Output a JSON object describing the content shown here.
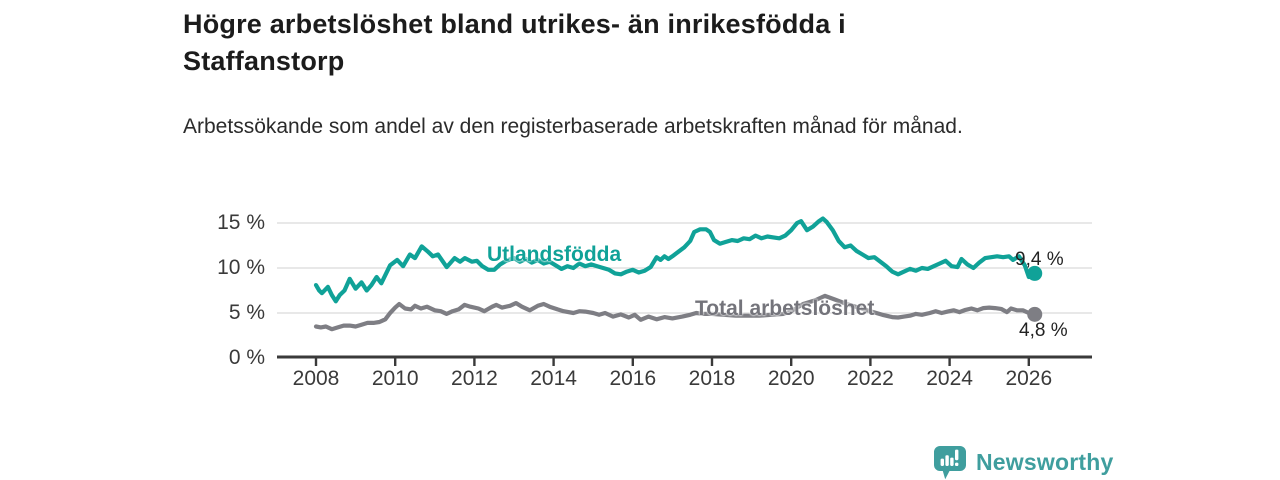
{
  "header": {
    "title": "Högre arbetslöshet bland utrikes- än inrikesfödda i Staffanstorp",
    "subtitle": "Arbetssökande som andel av den registerbaserade arbetskraften månad för månad."
  },
  "chart_data": {
    "type": "line",
    "title": "Högre arbetslöshet bland utrikes- än inrikesfödda i Staffanstorp",
    "subtitle": "Arbetssökande som andel av den registerbaserade arbetskraften månad för månad.",
    "unit": "%",
    "grid": "horizontal-only",
    "legend_position": "inline-on-lines",
    "x_axis": {
      "ticks": [
        2008,
        2010,
        2012,
        2014,
        2016,
        2018,
        2020,
        2022,
        2024,
        2026
      ],
      "tick_labels": [
        "2008",
        "2010",
        "2012",
        "2014",
        "2016",
        "2018",
        "2020",
        "2022",
        "2024",
        "2026"
      ],
      "range_years": [
        2007.0,
        2027.6
      ]
    },
    "y_axis": {
      "tick_values": [
        0,
        5,
        10,
        15
      ],
      "tick_labels": [
        "0 %",
        "5 %",
        "10 %",
        "15 %"
      ],
      "ylim": [
        0,
        16.5
      ]
    },
    "colors": {
      "accent_teal": "#10a298",
      "neutral_gray": "#7e7e84",
      "axis": "#3a3a3a",
      "gridline": "#d9d9d9",
      "background": "#ffffff"
    },
    "series": [
      {
        "name": "Utlandsfödda",
        "color": "#10a298",
        "end_label": "9,4 %",
        "end_value": 9.4,
        "points": [
          [
            2008.0,
            8.1
          ],
          [
            2008.08,
            7.5
          ],
          [
            2008.15,
            7.2
          ],
          [
            2008.3,
            7.9
          ],
          [
            2008.4,
            7.0
          ],
          [
            2008.5,
            6.3
          ],
          [
            2008.6,
            7.0
          ],
          [
            2008.72,
            7.5
          ],
          [
            2008.85,
            8.8
          ],
          [
            2009.0,
            7.7
          ],
          [
            2009.15,
            8.4
          ],
          [
            2009.28,
            7.5
          ],
          [
            2009.4,
            8.1
          ],
          [
            2009.53,
            9.0
          ],
          [
            2009.65,
            8.3
          ],
          [
            2009.87,
            10.3
          ],
          [
            2010.05,
            10.9
          ],
          [
            2010.2,
            10.2
          ],
          [
            2010.37,
            11.5
          ],
          [
            2010.5,
            11.1
          ],
          [
            2010.67,
            12.4
          ],
          [
            2010.83,
            11.8
          ],
          [
            2010.95,
            11.3
          ],
          [
            2011.08,
            11.5
          ],
          [
            2011.3,
            10.1
          ],
          [
            2011.5,
            11.1
          ],
          [
            2011.64,
            10.7
          ],
          [
            2011.76,
            11.1
          ],
          [
            2011.94,
            10.7
          ],
          [
            2012.06,
            10.8
          ],
          [
            2012.2,
            10.2
          ],
          [
            2012.35,
            9.8
          ],
          [
            2012.5,
            9.8
          ],
          [
            2012.65,
            10.4
          ],
          [
            2012.8,
            10.8
          ],
          [
            2013.0,
            11.1
          ],
          [
            2013.15,
            10.7
          ],
          [
            2013.3,
            11.0
          ],
          [
            2013.45,
            10.6
          ],
          [
            2013.6,
            10.9
          ],
          [
            2013.75,
            10.5
          ],
          [
            2013.9,
            10.7
          ],
          [
            2014.05,
            10.3
          ],
          [
            2014.2,
            9.9
          ],
          [
            2014.35,
            10.2
          ],
          [
            2014.5,
            10.0
          ],
          [
            2014.65,
            10.5
          ],
          [
            2014.8,
            10.2
          ],
          [
            2014.95,
            10.4
          ],
          [
            2015.1,
            10.2
          ],
          [
            2015.25,
            10.0
          ],
          [
            2015.4,
            9.8
          ],
          [
            2015.55,
            9.4
          ],
          [
            2015.7,
            9.3
          ],
          [
            2015.85,
            9.6
          ],
          [
            2016.0,
            9.8
          ],
          [
            2016.15,
            9.5
          ],
          [
            2016.3,
            9.7
          ],
          [
            2016.45,
            10.1
          ],
          [
            2016.6,
            11.2
          ],
          [
            2016.7,
            10.9
          ],
          [
            2016.8,
            11.3
          ],
          [
            2016.9,
            11.0
          ],
          [
            2017.0,
            11.3
          ],
          [
            2017.15,
            11.8
          ],
          [
            2017.3,
            12.3
          ],
          [
            2017.45,
            13.0
          ],
          [
            2017.55,
            14.0
          ],
          [
            2017.7,
            14.3
          ],
          [
            2017.85,
            14.3
          ],
          [
            2017.95,
            14.0
          ],
          [
            2018.05,
            13.1
          ],
          [
            2018.2,
            12.7
          ],
          [
            2018.35,
            12.9
          ],
          [
            2018.5,
            13.1
          ],
          [
            2018.65,
            13.0
          ],
          [
            2018.8,
            13.3
          ],
          [
            2018.95,
            13.2
          ],
          [
            2019.1,
            13.6
          ],
          [
            2019.25,
            13.3
          ],
          [
            2019.4,
            13.5
          ],
          [
            2019.55,
            13.4
          ],
          [
            2019.7,
            13.3
          ],
          [
            2019.85,
            13.6
          ],
          [
            2020.0,
            14.2
          ],
          [
            2020.15,
            15.0
          ],
          [
            2020.25,
            15.2
          ],
          [
            2020.4,
            14.2
          ],
          [
            2020.55,
            14.6
          ],
          [
            2020.7,
            15.2
          ],
          [
            2020.8,
            15.5
          ],
          [
            2020.9,
            15.1
          ],
          [
            2021.05,
            14.2
          ],
          [
            2021.2,
            13.0
          ],
          [
            2021.35,
            12.3
          ],
          [
            2021.5,
            12.5
          ],
          [
            2021.65,
            11.9
          ],
          [
            2021.8,
            11.5
          ],
          [
            2021.95,
            11.1
          ],
          [
            2022.1,
            11.2
          ],
          [
            2022.25,
            10.7
          ],
          [
            2022.4,
            10.2
          ],
          [
            2022.55,
            9.6
          ],
          [
            2022.7,
            9.3
          ],
          [
            2022.85,
            9.6
          ],
          [
            2023.0,
            9.9
          ],
          [
            2023.15,
            9.7
          ],
          [
            2023.3,
            10.0
          ],
          [
            2023.45,
            9.9
          ],
          [
            2023.6,
            10.2
          ],
          [
            2023.75,
            10.5
          ],
          [
            2023.9,
            10.8
          ],
          [
            2024.05,
            10.2
          ],
          [
            2024.2,
            10.1
          ],
          [
            2024.3,
            11.0
          ],
          [
            2024.45,
            10.4
          ],
          [
            2024.6,
            10.0
          ],
          [
            2024.75,
            10.6
          ],
          [
            2024.9,
            11.1
          ],
          [
            2025.05,
            11.2
          ],
          [
            2025.2,
            11.3
          ],
          [
            2025.35,
            11.2
          ],
          [
            2025.5,
            11.3
          ],
          [
            2025.6,
            10.9
          ],
          [
            2025.75,
            11.3
          ],
          [
            2025.9,
            10.3
          ],
          [
            2026.0,
            9.0
          ],
          [
            2026.1,
            9.2
          ],
          [
            2026.15,
            9.4
          ]
        ]
      },
      {
        "name": "Total arbetslöshet",
        "color": "#7e7e84",
        "end_label": "4,8 %",
        "end_value": 4.8,
        "points": [
          [
            2008.0,
            3.5
          ],
          [
            2008.12,
            3.4
          ],
          [
            2008.25,
            3.5
          ],
          [
            2008.4,
            3.2
          ],
          [
            2008.55,
            3.4
          ],
          [
            2008.7,
            3.6
          ],
          [
            2008.85,
            3.6
          ],
          [
            2009.0,
            3.5
          ],
          [
            2009.15,
            3.7
          ],
          [
            2009.3,
            3.9
          ],
          [
            2009.45,
            3.9
          ],
          [
            2009.6,
            4.0
          ],
          [
            2009.75,
            4.3
          ],
          [
            2009.87,
            5.0
          ],
          [
            2010.0,
            5.6
          ],
          [
            2010.1,
            6.0
          ],
          [
            2010.25,
            5.5
          ],
          [
            2010.4,
            5.4
          ],
          [
            2010.5,
            5.8
          ],
          [
            2010.65,
            5.5
          ],
          [
            2010.8,
            5.7
          ],
          [
            2011.0,
            5.3
          ],
          [
            2011.15,
            5.2
          ],
          [
            2011.3,
            4.9
          ],
          [
            2011.45,
            5.2
          ],
          [
            2011.6,
            5.4
          ],
          [
            2011.75,
            5.9
          ],
          [
            2011.9,
            5.7
          ],
          [
            2012.1,
            5.5
          ],
          [
            2012.25,
            5.2
          ],
          [
            2012.45,
            5.7
          ],
          [
            2012.55,
            5.9
          ],
          [
            2012.7,
            5.6
          ],
          [
            2012.9,
            5.8
          ],
          [
            2013.05,
            6.1
          ],
          [
            2013.2,
            5.7
          ],
          [
            2013.4,
            5.3
          ],
          [
            2013.6,
            5.8
          ],
          [
            2013.75,
            6.0
          ],
          [
            2013.9,
            5.7
          ],
          [
            2014.1,
            5.4
          ],
          [
            2014.25,
            5.2
          ],
          [
            2014.5,
            5.0
          ],
          [
            2014.65,
            5.2
          ],
          [
            2014.8,
            5.15
          ],
          [
            2015.0,
            5.0
          ],
          [
            2015.15,
            4.8
          ],
          [
            2015.3,
            5.0
          ],
          [
            2015.5,
            4.6
          ],
          [
            2015.7,
            4.85
          ],
          [
            2015.9,
            4.5
          ],
          [
            2016.05,
            4.8
          ],
          [
            2016.2,
            4.25
          ],
          [
            2016.4,
            4.6
          ],
          [
            2016.6,
            4.3
          ],
          [
            2016.8,
            4.55
          ],
          [
            2017.0,
            4.4
          ],
          [
            2017.25,
            4.6
          ],
          [
            2017.45,
            4.8
          ],
          [
            2017.6,
            5.0
          ],
          [
            2017.8,
            4.9
          ],
          [
            2018.0,
            4.9
          ],
          [
            2018.3,
            4.8
          ],
          [
            2018.6,
            4.7
          ],
          [
            2018.9,
            4.7
          ],
          [
            2019.2,
            4.7
          ],
          [
            2019.5,
            4.8
          ],
          [
            2019.8,
            4.9
          ],
          [
            2020.0,
            5.2
          ],
          [
            2020.3,
            6.0
          ],
          [
            2020.6,
            6.4
          ],
          [
            2020.85,
            6.9
          ],
          [
            2021.1,
            6.5
          ],
          [
            2021.4,
            6.0
          ],
          [
            2021.7,
            5.6
          ],
          [
            2022.0,
            5.2
          ],
          [
            2022.3,
            4.8
          ],
          [
            2022.55,
            4.55
          ],
          [
            2022.7,
            4.5
          ],
          [
            2022.85,
            4.6
          ],
          [
            2023.0,
            4.7
          ],
          [
            2023.15,
            4.9
          ],
          [
            2023.3,
            4.8
          ],
          [
            2023.5,
            5.0
          ],
          [
            2023.65,
            5.2
          ],
          [
            2023.8,
            5.0
          ],
          [
            2023.95,
            5.15
          ],
          [
            2024.1,
            5.3
          ],
          [
            2024.25,
            5.1
          ],
          [
            2024.4,
            5.35
          ],
          [
            2024.55,
            5.5
          ],
          [
            2024.7,
            5.3
          ],
          [
            2024.85,
            5.55
          ],
          [
            2025.0,
            5.6
          ],
          [
            2025.15,
            5.55
          ],
          [
            2025.3,
            5.45
          ],
          [
            2025.45,
            5.1
          ],
          [
            2025.55,
            5.5
          ],
          [
            2025.7,
            5.3
          ],
          [
            2025.85,
            5.3
          ],
          [
            2026.0,
            5.0
          ],
          [
            2026.15,
            4.85
          ]
        ]
      }
    ]
  },
  "footer": {
    "brand": "Newsworthy",
    "logo_icon": "newsworthy-chart-bubble-icon",
    "brand_color": "#3f9e9e"
  }
}
